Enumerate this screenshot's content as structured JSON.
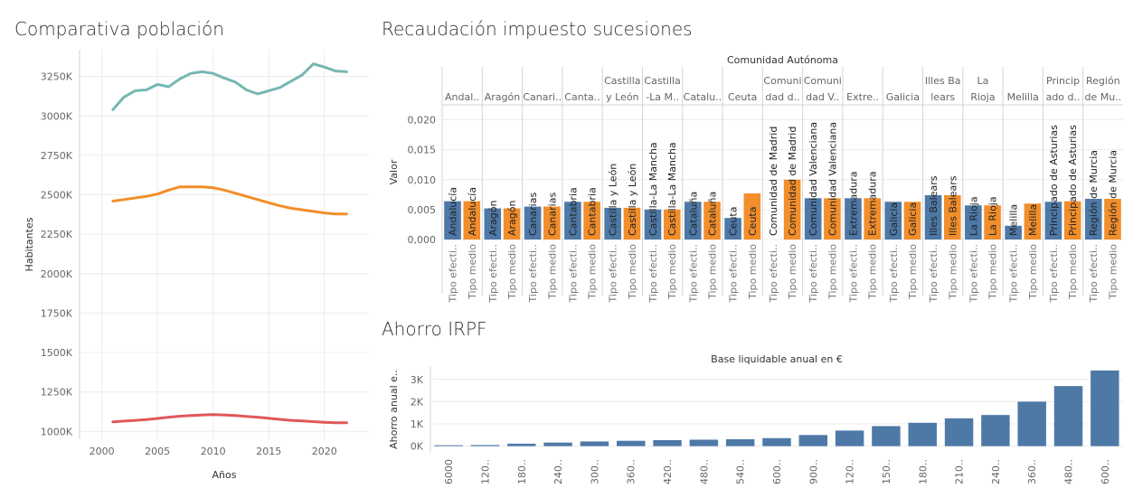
{
  "titles": {
    "poblacion": "Comparativa población",
    "sucesiones": "Recaudación impuesto sucesiones",
    "irpf": "Ahorro IRPF"
  },
  "chart_data": [
    {
      "type": "line",
      "xlabel": "Años",
      "ylabel": "Habitantes",
      "xticks": [
        2000,
        2005,
        2010,
        2015,
        2020
      ],
      "yticks": [
        1000000,
        1250000,
        1500000,
        1750000,
        2000000,
        2250000,
        2500000,
        2750000,
        3000000,
        3250000
      ],
      "ytick_labels": [
        "1000K",
        "1250K",
        "1500K",
        "1750K",
        "2000K",
        "2250K",
        "2500K",
        "2750K",
        "3000K",
        "3250K"
      ],
      "xlim": [
        1998,
        2024
      ],
      "ylim": [
        950000,
        3420000
      ],
      "x": [
        2001,
        2002,
        2003,
        2004,
        2005,
        2006,
        2007,
        2008,
        2009,
        2010,
        2011,
        2012,
        2013,
        2014,
        2015,
        2016,
        2017,
        2018,
        2019,
        2020,
        2021,
        2022
      ],
      "series": [
        {
          "color": "#76b7b2",
          "values": [
            3040000,
            3120000,
            3160000,
            3165000,
            3200000,
            3185000,
            3235000,
            3270000,
            3280000,
            3270000,
            3240000,
            3215000,
            3165000,
            3140000,
            3160000,
            3180000,
            3220000,
            3260000,
            3330000,
            3310000,
            3285000,
            3280000
          ]
        },
        {
          "color": "#f28e2b",
          "values": [
            2460000,
            2470000,
            2480000,
            2490000,
            2505000,
            2530000,
            2550000,
            2550000,
            2550000,
            2545000,
            2530000,
            2510000,
            2490000,
            2470000,
            2450000,
            2430000,
            2415000,
            2405000,
            2395000,
            2385000,
            2378000,
            2378000
          ]
        },
        {
          "color": "#e15759",
          "values": [
            1060000,
            1065000,
            1070000,
            1075000,
            1082000,
            1090000,
            1096000,
            1100000,
            1104000,
            1106000,
            1104000,
            1100000,
            1095000,
            1090000,
            1083000,
            1076000,
            1070000,
            1066000,
            1062000,
            1058000,
            1055000,
            1055000
          ]
        }
      ]
    },
    {
      "type": "bar",
      "column_header": "Comunidad Autónoma",
      "ylabel": "Valor",
      "ylim": [
        0,
        0.0225
      ],
      "yticks": [
        0,
        0.005,
        0.01,
        0.015,
        0.02
      ],
      "ytick_labels": [
        "0,000",
        "0,005",
        "0,010",
        "0,015",
        "0,020"
      ],
      "header_labels": [
        [
          "Andal.."
        ],
        [
          "Aragón"
        ],
        [
          "Canari.."
        ],
        [
          "Canta.."
        ],
        [
          "Castilla",
          "y León"
        ],
        [
          "Castilla",
          "-La M.."
        ],
        [
          "Catalu.."
        ],
        [
          "Ceuta"
        ],
        [
          "Comuni",
          "dad d.."
        ],
        [
          "Comuni",
          "dad V.."
        ],
        [
          "Extre.."
        ],
        [
          "Galicia"
        ],
        [
          "Illes Ba",
          "lears"
        ],
        [
          "La",
          "Rioja"
        ],
        [
          "Melilla"
        ],
        [
          "Princip",
          "ado d.."
        ],
        [
          "Región",
          "de Mu.."
        ]
      ],
      "categories": [
        "Andalucía",
        "Aragón",
        "Canarias",
        "Cantabria",
        "Castilla y León",
        "Castilla-La Mancha",
        "Cataluña",
        "Ceuta",
        "Comunidad de Madrid",
        "Comunidad Valenciana",
        "Extremadura",
        "Galicia",
        "Illes Balears",
        "La Rioja",
        "Melilla",
        "Principado de Asturias",
        "Región de Murcia"
      ],
      "series": [
        {
          "name": "Tipo efectivo",
          "axis_label": "Tipo efecti..",
          "color": "#4e79a7",
          "values": [
            0.0064,
            0.0052,
            0.0055,
            0.0063,
            0.0053,
            0.005,
            0.0063,
            0.0036,
            0.0,
            0.0069,
            0.0069,
            0.0063,
            0.0074,
            0.0057,
            0.0023,
            0.0063,
            0.0068
          ]
        },
        {
          "name": "Tipo medio",
          "axis_label": "Tipo medio",
          "color": "#f28e2b",
          "values": [
            0.0064,
            0.0052,
            0.0055,
            0.0063,
            0.0053,
            0.005,
            0.0063,
            0.0077,
            0.01,
            0.0069,
            0.0069,
            0.0063,
            0.0074,
            0.0057,
            0.006,
            0.0064,
            0.0068
          ]
        }
      ]
    },
    {
      "type": "bar",
      "column_header": "Base liquidable anual en €",
      "ylabel": "Ahorro anual e..",
      "ylim": [
        -300,
        3600
      ],
      "yticks": [
        0,
        1000,
        2000,
        3000
      ],
      "ytick_labels": [
        "0K",
        "1K",
        "2K",
        "3K"
      ],
      "category_labels": [
        "6000",
        "120..",
        "180..",
        "240..",
        "300..",
        "360..",
        "420..",
        "480..",
        "540..",
        "600..",
        "900..",
        "120..",
        "150..",
        "180..",
        "210..",
        "240..",
        "360..",
        "480..",
        "600.."
      ],
      "color": "#4e79a7",
      "values": [
        0,
        50,
        110,
        160,
        210,
        240,
        270,
        290,
        310,
        360,
        500,
        700,
        900,
        1050,
        1250,
        1400,
        2000,
        2700,
        3400
      ]
    }
  ]
}
